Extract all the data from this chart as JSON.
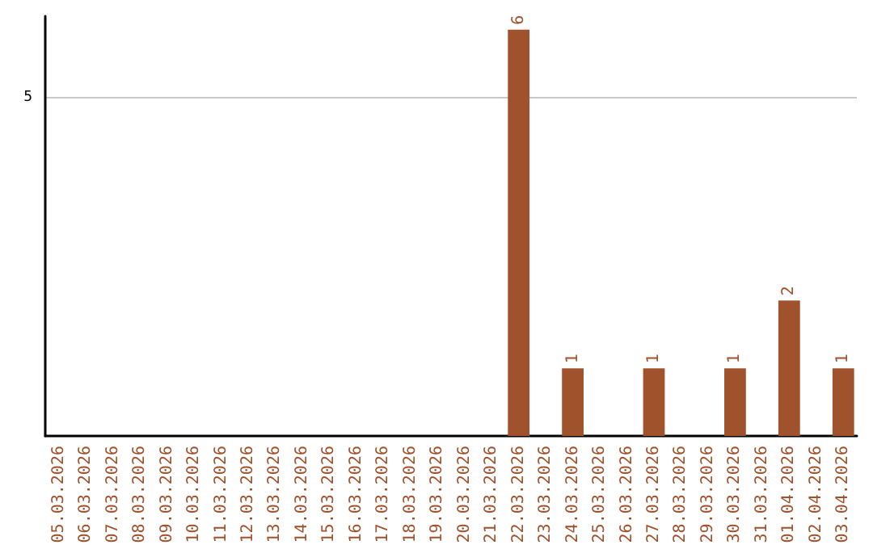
{
  "chart_data": {
    "type": "bar",
    "categories": [
      "05.03.2026",
      "06.03.2026",
      "07.03.2026",
      "08.03.2026",
      "09.03.2026",
      "10.03.2026",
      "11.03.2026",
      "12.03.2026",
      "13.03.2026",
      "14.03.2026",
      "15.03.2026",
      "16.03.2026",
      "17.03.2026",
      "18.03.2026",
      "19.03.2026",
      "20.03.2026",
      "21.03.2026",
      "22.03.2026",
      "23.03.2026",
      "24.03.2026",
      "25.03.2026",
      "26.03.2026",
      "27.03.2026",
      "28.03.2026",
      "29.03.2026",
      "30.03.2026",
      "31.03.2026",
      "01.04.2026",
      "02.04.2026",
      "03.04.2026"
    ],
    "values": [
      null,
      null,
      null,
      null,
      null,
      null,
      null,
      null,
      null,
      null,
      null,
      null,
      null,
      null,
      null,
      null,
      null,
      6,
      null,
      1,
      null,
      null,
      1,
      null,
      null,
      1,
      null,
      2,
      null,
      1
    ],
    "data_labels": true,
    "color": "#a0522d",
    "ylim": [
      0,
      6.2
    ],
    "yticks": [
      5
    ],
    "grid": "y"
  }
}
